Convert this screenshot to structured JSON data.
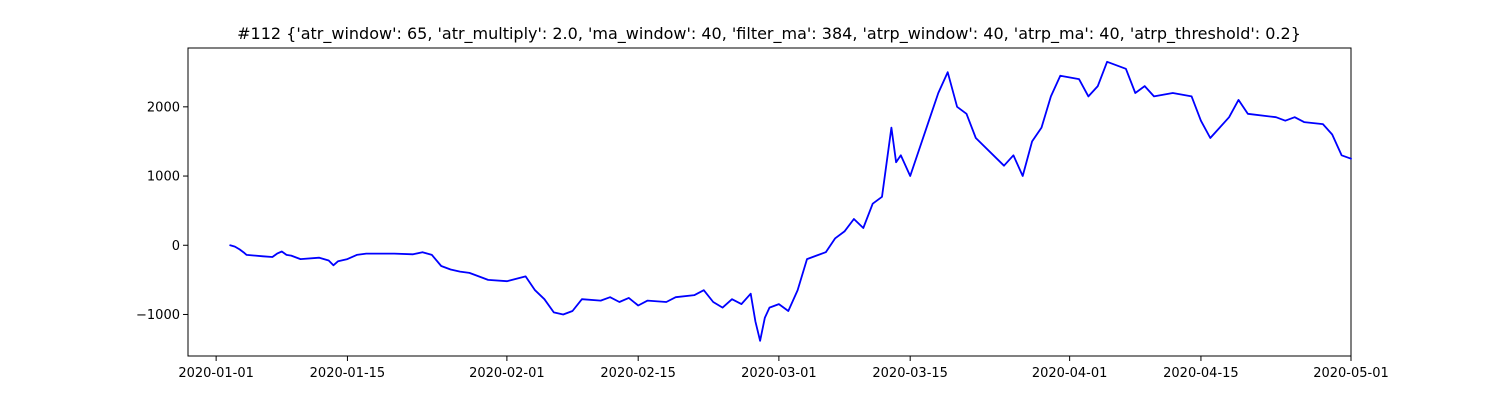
{
  "chart_data": {
    "type": "line",
    "title": "#112 {'atr_window': 65, 'atr_multiply': 2.0, 'ma_window': 40, 'filter_ma': 384, 'atrp_window': 40, 'atrp_ma': 40, 'atrp_threshold': 0.2}",
    "xlabel": "",
    "ylabel": "",
    "x_axis": {
      "kind": "date",
      "range": [
        "2019-12-29",
        "2020-05-01"
      ],
      "tick_values": [
        "2020-01-01",
        "2020-01-15",
        "2020-02-01",
        "2020-02-15",
        "2020-03-01",
        "2020-03-15",
        "2020-04-01",
        "2020-04-15",
        "2020-05-01"
      ],
      "tick_labels": [
        "2020-01-01",
        "2020-01-15",
        "2020-02-01",
        "2020-02-15",
        "2020-03-01",
        "2020-03-15",
        "2020-04-01",
        "2020-04-15",
        "2020-05-01"
      ]
    },
    "y_axis": {
      "range": [
        -1600,
        2850
      ],
      "tick_values": [
        -1000,
        0,
        1000,
        2000
      ],
      "tick_labels": [
        "−1000",
        "0",
        "1000",
        "2000"
      ]
    },
    "grid": false,
    "legend": "none",
    "series": [
      {
        "color": "#0000ff",
        "points": [
          [
            "2020-01-02 12:00",
            0
          ],
          [
            "2020-01-03",
            -20
          ],
          [
            "2020-01-03 12:00",
            -60
          ],
          [
            "2020-01-04",
            -110
          ],
          [
            "2020-01-04 06:00",
            -140
          ],
          [
            "2020-01-06",
            -160
          ],
          [
            "2020-01-07",
            -170
          ],
          [
            "2020-01-07 12:00",
            -120
          ],
          [
            "2020-01-08",
            -90
          ],
          [
            "2020-01-08 12:00",
            -140
          ],
          [
            "2020-01-09",
            -150
          ],
          [
            "2020-01-10",
            -200
          ],
          [
            "2020-01-12",
            -180
          ],
          [
            "2020-01-13",
            -220
          ],
          [
            "2020-01-13 12:00",
            -290
          ],
          [
            "2020-01-14",
            -230
          ],
          [
            "2020-01-15",
            -200
          ],
          [
            "2020-01-16",
            -140
          ],
          [
            "2020-01-17",
            -120
          ],
          [
            "2020-01-20",
            -120
          ],
          [
            "2020-01-22",
            -130
          ],
          [
            "2020-01-23",
            -100
          ],
          [
            "2020-01-24",
            -140
          ],
          [
            "2020-01-25",
            -300
          ],
          [
            "2020-01-26",
            -350
          ],
          [
            "2020-01-27",
            -380
          ],
          [
            "2020-01-28",
            -400
          ],
          [
            "2020-01-29",
            -450
          ],
          [
            "2020-01-30",
            -500
          ],
          [
            "2020-02-01",
            -520
          ],
          [
            "2020-02-03",
            -450
          ],
          [
            "2020-02-04",
            -650
          ],
          [
            "2020-02-05",
            -780
          ],
          [
            "2020-02-06",
            -970
          ],
          [
            "2020-02-07",
            -1000
          ],
          [
            "2020-02-08",
            -950
          ],
          [
            "2020-02-09",
            -780
          ],
          [
            "2020-02-11",
            -800
          ],
          [
            "2020-02-12",
            -750
          ],
          [
            "2020-02-13",
            -820
          ],
          [
            "2020-02-14",
            -760
          ],
          [
            "2020-02-15",
            -870
          ],
          [
            "2020-02-16",
            -800
          ],
          [
            "2020-02-18",
            -820
          ],
          [
            "2020-02-19",
            -750
          ],
          [
            "2020-02-21",
            -720
          ],
          [
            "2020-02-22",
            -650
          ],
          [
            "2020-02-23",
            -820
          ],
          [
            "2020-02-24",
            -900
          ],
          [
            "2020-02-25",
            -780
          ],
          [
            "2020-02-26",
            -850
          ],
          [
            "2020-02-27",
            -700
          ],
          [
            "2020-02-27 12:00",
            -1100
          ],
          [
            "2020-02-28",
            -1380
          ],
          [
            "2020-02-28 12:00",
            -1050
          ],
          [
            "2020-02-29",
            -900
          ],
          [
            "2020-03-01",
            -850
          ],
          [
            "2020-03-02",
            -950
          ],
          [
            "2020-03-03",
            -650
          ],
          [
            "2020-03-04",
            -200
          ],
          [
            "2020-03-05",
            -150
          ],
          [
            "2020-03-06",
            -100
          ],
          [
            "2020-03-07",
            100
          ],
          [
            "2020-03-08",
            200
          ],
          [
            "2020-03-09",
            380
          ],
          [
            "2020-03-10",
            250
          ],
          [
            "2020-03-11",
            600
          ],
          [
            "2020-03-12",
            700
          ],
          [
            "2020-03-13",
            1700
          ],
          [
            "2020-03-13 12:00",
            1200
          ],
          [
            "2020-03-14",
            1300
          ],
          [
            "2020-03-15",
            1000
          ],
          [
            "2020-03-17",
            1800
          ],
          [
            "2020-03-18",
            2200
          ],
          [
            "2020-03-19",
            2500
          ],
          [
            "2020-03-20",
            2000
          ],
          [
            "2020-03-21",
            1900
          ],
          [
            "2020-03-22",
            1550
          ],
          [
            "2020-03-25",
            1150
          ],
          [
            "2020-03-26",
            1300
          ],
          [
            "2020-03-27",
            1000
          ],
          [
            "2020-03-28",
            1500
          ],
          [
            "2020-03-29",
            1700
          ],
          [
            "2020-03-30",
            2150
          ],
          [
            "2020-03-31",
            2450
          ],
          [
            "2020-04-02",
            2400
          ],
          [
            "2020-04-03",
            2150
          ],
          [
            "2020-04-04",
            2300
          ],
          [
            "2020-04-05",
            2650
          ],
          [
            "2020-04-06",
            2600
          ],
          [
            "2020-04-07",
            2550
          ],
          [
            "2020-04-08",
            2200
          ],
          [
            "2020-04-09",
            2300
          ],
          [
            "2020-04-10",
            2150
          ],
          [
            "2020-04-12",
            2200
          ],
          [
            "2020-04-14",
            2150
          ],
          [
            "2020-04-15",
            1800
          ],
          [
            "2020-04-16",
            1550
          ],
          [
            "2020-04-17",
            1700
          ],
          [
            "2020-04-18",
            1850
          ],
          [
            "2020-04-19",
            2100
          ],
          [
            "2020-04-20",
            1900
          ],
          [
            "2020-04-23",
            1850
          ],
          [
            "2020-04-24",
            1800
          ],
          [
            "2020-04-25",
            1850
          ],
          [
            "2020-04-26",
            1780
          ],
          [
            "2020-04-28",
            1750
          ],
          [
            "2020-04-29",
            1600
          ],
          [
            "2020-04-30",
            1300
          ],
          [
            "2020-05-01",
            1250
          ]
        ]
      }
    ]
  }
}
